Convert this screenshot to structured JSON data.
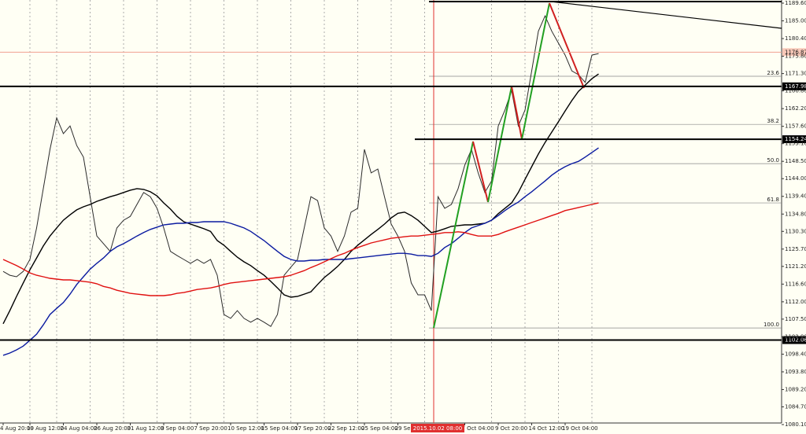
{
  "chart_data": {
    "type": "line",
    "categories": [
      "4 Aug 20:00",
      null,
      null,
      null,
      "19 Aug 12:00",
      null,
      null,
      null,
      null,
      "24 Aug 04:00",
      null,
      null,
      null,
      null,
      "26 Aug 20:00",
      null,
      null,
      null,
      null,
      "31 Aug 12:00",
      null,
      null,
      null,
      null,
      "3 Sep 04:00",
      null,
      null,
      null,
      null,
      "7 Sep 20:00",
      null,
      null,
      null,
      null,
      "10 Sep 12:00",
      null,
      null,
      null,
      null,
      "15 Sep 04:00",
      null,
      null,
      null,
      null,
      "17 Sep 20:00",
      null,
      null,
      null,
      null,
      "22 Sep 12:00",
      null,
      null,
      null,
      null,
      "25 Sep 04:00",
      null,
      null,
      null,
      null,
      "29 Se",
      null,
      null,
      null,
      null,
      null,
      null,
      null,
      null,
      null,
      "7 Oct 04:00",
      null,
      null,
      null,
      null,
      "9 Oct 20:00",
      null,
      null,
      null,
      null,
      "14 Oct 12:00",
      null,
      null,
      null,
      null,
      "19 Oct 04:00",
      null,
      null,
      null,
      null,
      null
    ],
    "series": [
      {
        "color": "#2a2a2a",
        "values": [
          1119.9,
          1118.9,
          1118.5,
          1119.9,
          1123.0,
          1131.2,
          1141.4,
          1151.6,
          1159.8,
          1155.7,
          1157.7,
          1152.6,
          1149.6,
          1139.3,
          1129.1,
          1127.1,
          1125.1,
          1131.2,
          1133.2,
          1134.2,
          1137.3,
          1140.4,
          1139.3,
          1136.3,
          1131.2,
          1125.1,
          1124.0,
          1123.0,
          1122.0,
          1123.0,
          1122.0,
          1123.0,
          1118.9,
          1108.7,
          1107.7,
          1109.7,
          1107.7,
          1106.7,
          1107.7,
          1106.7,
          1105.6,
          1108.7,
          1118.9,
          1121.0,
          1123.0,
          1131.2,
          1139.3,
          1138.3,
          1131.2,
          1129.1,
          1125.1,
          1129.1,
          1135.3,
          1136.3,
          1151.6,
          1145.5,
          1146.5,
          1139.3,
          1132.2,
          1129.1,
          1125.1,
          1116.9,
          1113.8,
          1113.8,
          1109.7,
          1139.3,
          1136.3,
          1137.3,
          1141.4,
          1147.5,
          1151.6,
          1145.5,
          1140.4,
          1143.4,
          1157.7,
          1161.8,
          1166.9,
          1157.7,
          1161.8,
          1172.0,
          1182.3,
          1186.3,
          1182.3,
          1179.2,
          1176.1,
          1172.0,
          1171.0,
          1169.0,
          1176.1,
          1176.5
        ]
      },
      {
        "color": "#000000",
        "values": [
          1106.3,
          1109.7,
          1113.4,
          1116.9,
          1120.3,
          1123.4,
          1126.5,
          1129.1,
          1131.2,
          1133.2,
          1134.6,
          1135.9,
          1136.7,
          1137.3,
          1138.1,
          1138.7,
          1139.3,
          1139.8,
          1140.4,
          1141.0,
          1141.4,
          1141.2,
          1140.6,
          1139.5,
          1137.7,
          1136.1,
          1134.2,
          1132.8,
          1132.2,
          1131.6,
          1131.0,
          1130.3,
          1127.9,
          1126.7,
          1125.1,
          1123.6,
          1122.4,
          1121.4,
          1120.1,
          1118.9,
          1117.3,
          1115.6,
          1113.8,
          1113.2,
          1113.4,
          1114.0,
          1114.6,
          1116.5,
          1118.3,
          1119.7,
          1121.2,
          1123.0,
          1125.1,
          1126.7,
          1128.1,
          1129.5,
          1130.8,
          1132.2,
          1133.8,
          1135.0,
          1135.3,
          1134.4,
          1133.2,
          1131.6,
          1130.0,
          1130.4,
          1131.0,
          1131.6,
          1131.8,
          1132.0,
          1132.0,
          1132.2,
          1132.4,
          1133.2,
          1134.9,
          1136.3,
          1137.7,
          1140.4,
          1143.8,
          1147.1,
          1150.4,
          1153.4,
          1156.1,
          1158.8,
          1161.6,
          1164.3,
          1166.7,
          1168.3,
          1170.0,
          1171.2
        ]
      },
      {
        "color": "#0a1aa0",
        "values": [
          1098.1,
          1098.7,
          1099.5,
          1100.5,
          1102.0,
          1103.6,
          1106.0,
          1108.7,
          1110.3,
          1111.8,
          1114.0,
          1116.5,
          1118.5,
          1120.5,
          1122.0,
          1123.4,
          1125.1,
          1126.3,
          1127.1,
          1128.1,
          1129.1,
          1130.0,
          1130.8,
          1131.4,
          1132.0,
          1132.2,
          1132.4,
          1132.4,
          1132.6,
          1132.6,
          1132.8,
          1132.8,
          1132.8,
          1132.8,
          1132.4,
          1131.8,
          1131.2,
          1130.3,
          1129.1,
          1127.9,
          1126.5,
          1125.1,
          1123.8,
          1123.0,
          1122.6,
          1122.6,
          1122.8,
          1122.8,
          1123.0,
          1123.0,
          1123.0,
          1123.0,
          1123.2,
          1123.4,
          1123.6,
          1123.8,
          1124.0,
          1124.2,
          1124.4,
          1124.6,
          1124.6,
          1124.4,
          1124.0,
          1124.0,
          1123.8,
          1124.6,
          1126.1,
          1127.1,
          1128.5,
          1130.0,
          1131.2,
          1131.8,
          1132.4,
          1133.2,
          1134.4,
          1135.7,
          1136.9,
          1137.9,
          1139.3,
          1140.6,
          1142.0,
          1143.4,
          1144.9,
          1146.1,
          1147.1,
          1147.9,
          1148.5,
          1149.6,
          1150.8,
          1152.0
        ]
      },
      {
        "color": "#e01010",
        "values": [
          1123.0,
          1122.2,
          1121.4,
          1120.5,
          1119.5,
          1118.9,
          1118.5,
          1118.1,
          1117.9,
          1117.7,
          1117.7,
          1117.5,
          1117.3,
          1117.1,
          1116.7,
          1116.0,
          1115.6,
          1115.0,
          1114.6,
          1114.2,
          1114.0,
          1113.8,
          1113.6,
          1113.6,
          1113.6,
          1113.8,
          1114.2,
          1114.4,
          1114.8,
          1115.2,
          1115.4,
          1115.6,
          1116.0,
          1116.5,
          1116.9,
          1117.1,
          1117.3,
          1117.5,
          1117.7,
          1117.9,
          1118.1,
          1118.3,
          1118.5,
          1118.9,
          1119.5,
          1120.1,
          1120.9,
          1121.6,
          1122.4,
          1123.2,
          1124.0,
          1124.6,
          1125.4,
          1126.1,
          1126.7,
          1127.3,
          1127.7,
          1128.1,
          1128.5,
          1128.7,
          1128.9,
          1129.1,
          1129.1,
          1129.3,
          1129.5,
          1129.7,
          1130.0,
          1130.0,
          1130.2,
          1130.0,
          1129.5,
          1129.1,
          1129.1,
          1129.1,
          1129.5,
          1130.2,
          1130.8,
          1131.4,
          1132.0,
          1132.6,
          1133.2,
          1133.8,
          1134.4,
          1135.0,
          1135.7,
          1136.1,
          1136.5,
          1136.9,
          1137.3,
          1137.7
        ]
      }
    ],
    "ylim": [
      1079.08,
      1190.42
    ],
    "yticks": [
      {
        "value": 1189.6,
        "label": "1189.60"
      },
      {
        "value": 1185.0,
        "label": "1185.00"
      },
      {
        "value": 1180.4,
        "label": "1180.40"
      },
      {
        "value": 1175.8,
        "label": "1175.80"
      },
      {
        "value": 1171.3,
        "label": "1171.30"
      },
      {
        "value": 1166.8,
        "label": "1166.80"
      },
      {
        "value": 1162.2,
        "label": "1162.20"
      },
      {
        "value": 1157.6,
        "label": "1157.60"
      },
      {
        "value": 1153.1,
        "label": "1153.10"
      },
      {
        "value": 1148.5,
        "label": "1148.50"
      },
      {
        "value": 1144.0,
        "label": "1144.00"
      },
      {
        "value": 1139.4,
        "label": "1139.40"
      },
      {
        "value": 1134.8,
        "label": "1134.80"
      },
      {
        "value": 1130.3,
        "label": "1130.30"
      },
      {
        "value": 1125.7,
        "label": "1125.70"
      },
      {
        "value": 1121.2,
        "label": "1121.20"
      },
      {
        "value": 1116.6,
        "label": "1116.60"
      },
      {
        "value": 1112.0,
        "label": "1112.00"
      },
      {
        "value": 1107.5,
        "label": "1107.50"
      },
      {
        "value": 1102.9,
        "label": "1102.90"
      },
      {
        "value": 1098.4,
        "label": "1098.40"
      },
      {
        "value": 1093.8,
        "label": "1093.80"
      },
      {
        "value": 1089.2,
        "label": "1089.20"
      },
      {
        "value": 1084.7,
        "label": "1084.70"
      },
      {
        "value": 1080.1,
        "label": "1080.10"
      }
    ],
    "grid": true,
    "levels": [
      1167.98,
      1154.24,
      1102.06
    ],
    "current_price": 1176.87,
    "fib_levels": [
      {
        "label": "23.6",
        "price": 1170.6
      },
      {
        "label": "38.2",
        "price": 1158.1
      },
      {
        "label": "50.0",
        "price": 1147.9
      },
      {
        "label": "61.8",
        "price": 1137.7
      },
      {
        "label": "100.0",
        "price": 1105.2
      }
    ],
    "crosshair_label": "2015.10.02 08:00"
  }
}
